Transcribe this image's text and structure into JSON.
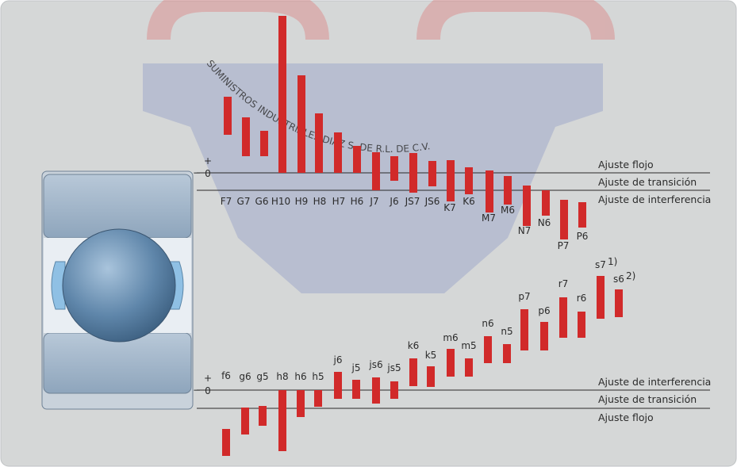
{
  "watermark": "SUMINISTROS INDUSTRIALES DIAZ S. DE R.L. DE C.V.",
  "top": {
    "zero_marks": [
      "+",
      "0",
      "−"
    ],
    "fits": [
      "Ajuste flojo",
      "Ajuste de transición",
      "Ajuste de interferencia"
    ],
    "tolerances": [
      "F7",
      "G7",
      "G6",
      "H10",
      "H9",
      "H8",
      "H7",
      "H6",
      "J7",
      "J6",
      "JS7",
      "JS6",
      "K7",
      "K6",
      "M7",
      "M6",
      "N7",
      "N6",
      "P7",
      "P6"
    ]
  },
  "bottom": {
    "zero_marks": [
      "+",
      "0",
      "−"
    ],
    "fits": [
      "Ajuste de interferencia",
      "Ajuste de transición",
      "Ajuste flojo"
    ],
    "tolerances": [
      "f6",
      "g6",
      "g5",
      "h8",
      "h6",
      "h5",
      "j6",
      "j5",
      "js6",
      "js5",
      "k6",
      "k5",
      "m6",
      "m5",
      "n6",
      "n5",
      "p7",
      "p6",
      "r7",
      "r6",
      "s7",
      "s6"
    ],
    "footnote_marks": [
      "1)",
      "2)"
    ]
  }
}
